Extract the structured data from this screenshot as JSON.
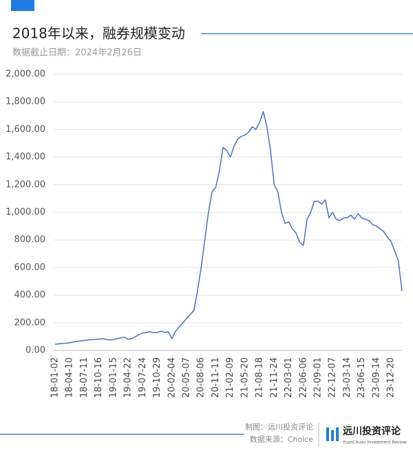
{
  "chart_data": {
    "type": "line",
    "title": "2018年以来，融券规模变动",
    "subtitle": "数据截止日期：2024年2月26日",
    "categories": [
      "18-01-02",
      null,
      null,
      null,
      "18-04-10",
      null,
      null,
      null,
      "18-07-11",
      null,
      null,
      null,
      "18-10-16",
      null,
      null,
      null,
      "19-01-15",
      null,
      null,
      null,
      "19-04-22",
      null,
      null,
      null,
      "19-07-24",
      null,
      null,
      null,
      "19-10-29",
      null,
      null,
      null,
      "20-02-04",
      null,
      null,
      null,
      "20-05-07",
      null,
      null,
      null,
      "20-08-06",
      null,
      null,
      null,
      "20-11-11",
      null,
      null,
      null,
      "21-02-09",
      null,
      null,
      null,
      "21-05-20",
      null,
      null,
      null,
      "21-08-18",
      null,
      null,
      null,
      "21-11-24",
      null,
      null,
      null,
      "22-03-01",
      null,
      null,
      null,
      "22-06-06",
      null,
      null,
      null,
      "22-09-01",
      null,
      null,
      null,
      "22-12-07",
      null,
      null,
      null,
      "23-03-14",
      null,
      null,
      null,
      "23-06-15",
      null,
      null,
      null,
      "23-09-14",
      null,
      null,
      null,
      "23-12-20",
      null,
      null,
      null
    ],
    "values": [
      45,
      48,
      50,
      52,
      55,
      60,
      65,
      68,
      72,
      75,
      78,
      80,
      82,
      85,
      80,
      75,
      78,
      85,
      92,
      95,
      80,
      85,
      100,
      115,
      125,
      130,
      135,
      128,
      130,
      140,
      130,
      135,
      85,
      140,
      170,
      200,
      230,
      260,
      290,
      430,
      600,
      800,
      1000,
      1150,
      1180,
      1300,
      1470,
      1450,
      1400,
      1480,
      1530,
      1550,
      1560,
      1580,
      1620,
      1600,
      1650,
      1730,
      1620,
      1450,
      1200,
      1150,
      1000,
      920,
      930,
      880,
      850,
      780,
      760,
      950,
      1000,
      1080,
      1080,
      1060,
      1090,
      960,
      1000,
      950,
      940,
      960,
      960,
      980,
      950,
      990,
      960,
      950,
      940,
      910,
      900,
      880,
      860,
      820,
      790,
      720,
      650,
      430
    ],
    "color": "#4472c4",
    "ylim": [
      0,
      2000
    ],
    "yticks": [
      {
        "value": 0,
        "label": "0.00"
      },
      {
        "value": 200,
        "label": "200.00"
      },
      {
        "value": 400,
        "label": "400.00"
      },
      {
        "value": 600,
        "label": "600.00"
      },
      {
        "value": 800,
        "label": "800.00"
      },
      {
        "value": 1000,
        "label": "1,000.00"
      },
      {
        "value": 1200,
        "label": "1,200.00"
      },
      {
        "value": 1400,
        "label": "1,400.00"
      },
      {
        "value": 1600,
        "label": "1,600.00"
      },
      {
        "value": 1800,
        "label": "1,800.00"
      },
      {
        "value": 2000,
        "label": "2,000.00"
      }
    ],
    "grid": true
  },
  "footer": {
    "credit": "制图：远川投资评论",
    "source": "数据来源：Choice",
    "brand": "远川投资评论",
    "brand_en": "YuanChuan Investment Review"
  }
}
